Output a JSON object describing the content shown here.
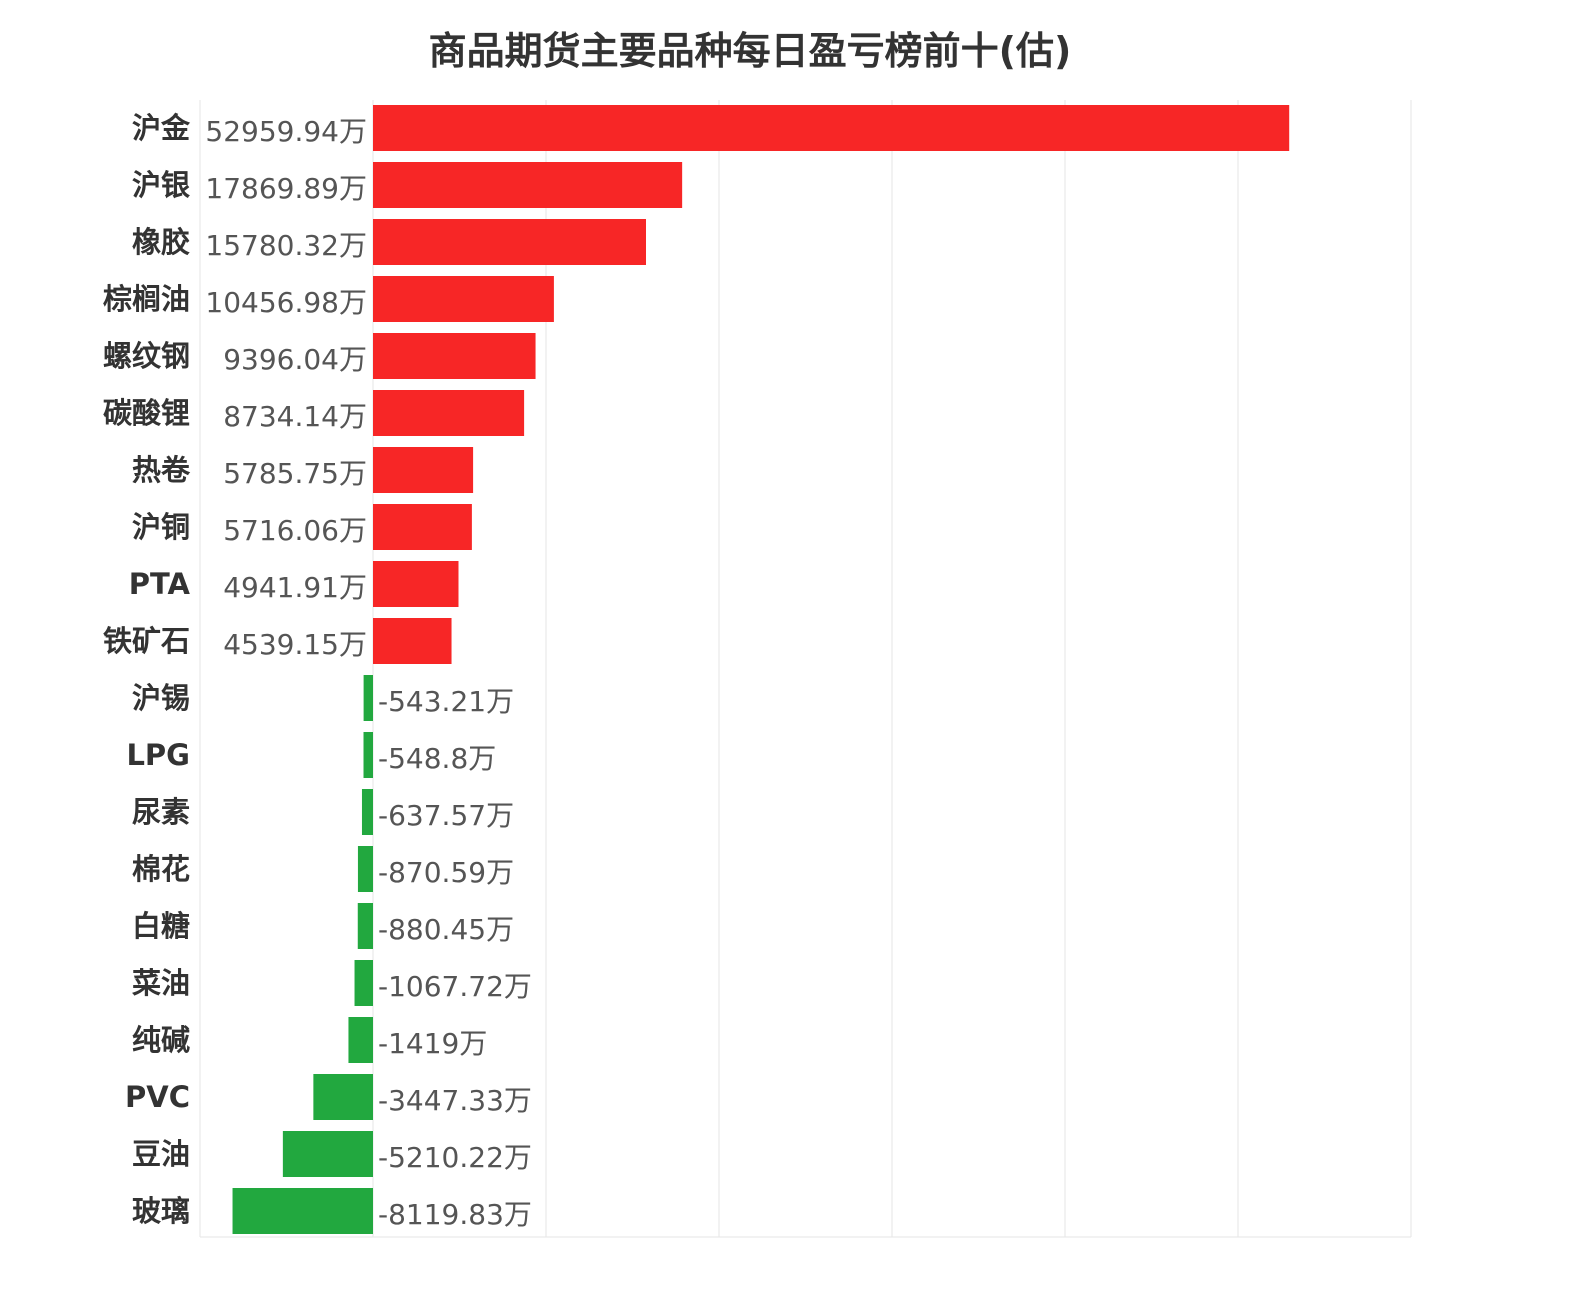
{
  "chart_data": {
    "type": "bar",
    "orientation": "horizontal",
    "title": "商品期货主要品种每日盈亏榜前十(估)",
    "unit": "万",
    "categories": [
      "沪金",
      "沪银",
      "橡胶",
      "棕榈油",
      "螺纹钢",
      "碳酸锂",
      "热卷",
      "沪铜",
      "PTA",
      "铁矿石",
      "沪锡",
      "LPG",
      "尿素",
      "棉花",
      "白糖",
      "菜油",
      "纯碱",
      "PVC",
      "豆油",
      "玻璃"
    ],
    "values": [
      52959.94,
      17869.89,
      15780.32,
      10456.98,
      9396.04,
      8734.14,
      5785.75,
      5716.06,
      4941.91,
      4539.15,
      -543.21,
      -548.8,
      -637.57,
      -870.59,
      -880.45,
      -1067.72,
      -1419,
      -3447.33,
      -5210.22,
      -8119.83
    ],
    "value_labels": [
      "52959.94万",
      "17869.89万",
      "15780.32万",
      "10456.98万",
      "9396.04万",
      "8734.14万",
      "5785.75万",
      "5716.06万",
      "4941.91万",
      "4539.15万",
      "-543.21万",
      "-548.8万",
      "-637.57万",
      "-870.59万",
      "-880.45万",
      "-1067.72万",
      "-1419万",
      "-3447.33万",
      "-5210.22万",
      "-8119.83万"
    ],
    "xlim": [
      -10000,
      60000
    ],
    "grid": true,
    "colors": {
      "positive": "#f72626",
      "negative": "#22a83f",
      "grid": "#e6e6e6"
    }
  }
}
